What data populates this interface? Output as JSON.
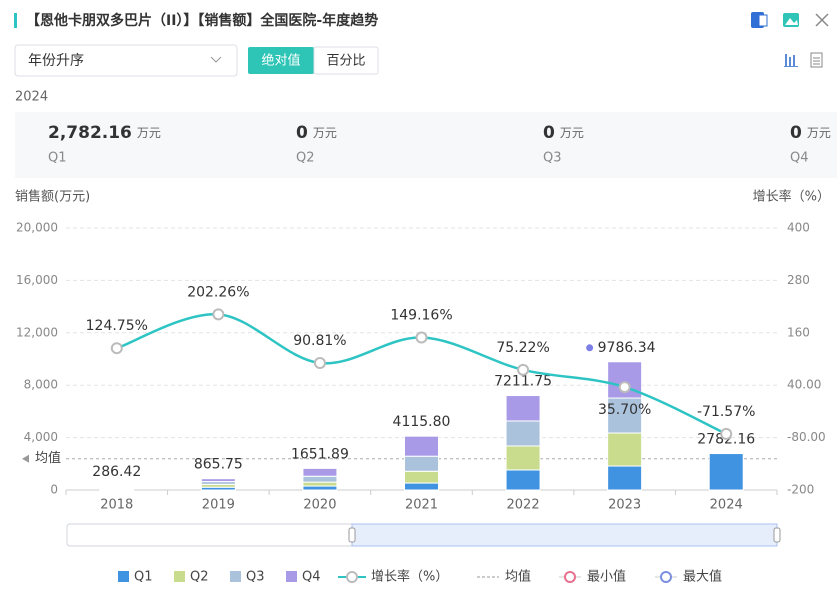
{
  "header": {
    "title": "【恩他卡朋双多巴片（II）】【销售额】全国医院-年度趋势"
  },
  "controls": {
    "sort": "年份升序",
    "modes": [
      "绝对值",
      "百分比"
    ]
  },
  "year": "2024",
  "kpis": [
    {
      "value": "2,782.16",
      "unit": "万元",
      "label": "Q1"
    },
    {
      "value": "0",
      "unit": "万元",
      "label": "Q2"
    },
    {
      "value": "0",
      "unit": "万元",
      "label": "Q3"
    },
    {
      "value": "0",
      "unit": "万元",
      "label": "Q4"
    }
  ],
  "chart_data": {
    "type": "bar",
    "stacked": true,
    "ylabel": "销售额(万元)",
    "y2label": "增长率（%）",
    "categories": [
      "2018",
      "2019",
      "2020",
      "2021",
      "2022",
      "2023",
      "2024"
    ],
    "series": [
      {
        "name": "Q1",
        "color": "#3f93e0",
        "values": [
          70,
          210,
          300,
          530,
          1530,
          1830,
          2782.16
        ]
      },
      {
        "name": "Q2",
        "color": "#c9dc8e",
        "values": [
          70,
          220,
          300,
          900,
          1830,
          2520,
          0
        ]
      },
      {
        "name": "Q3",
        "color": "#aac2dc",
        "values": [
          70,
          215,
          450,
          1150,
          1910,
          2670,
          0
        ]
      },
      {
        "name": "Q4",
        "color": "#a99ae8",
        "values": [
          76,
          220,
          600,
          1530,
          1940,
          2770,
          0
        ]
      },
      {
        "name": "增长率（%）",
        "type": "line",
        "axis": "y2",
        "color": "#2ec4c4",
        "values": [
          124.75,
          202.26,
          90.81,
          149.16,
          75.22,
          35.7,
          -71.57
        ],
        "value_labels": [
          "124.75%",
          "202.26%",
          "90.81%",
          "149.16%",
          "75.22%",
          "35.70%",
          "-71.57%"
        ]
      }
    ],
    "totals": {
      "values": [
        286.42,
        865.75,
        1651.89,
        4115.8,
        7211.75,
        9786.34,
        2782.16
      ],
      "value_labels": [
        "286.42",
        "865.75",
        "1651.89",
        "4115.80",
        "7211.75",
        "9786.34",
        "2782.16"
      ]
    },
    "average": {
      "value": 2390,
      "label": "均值"
    },
    "min_label": "最小值",
    "max_label": "最大值",
    "ylim": [
      0,
      20000
    ],
    "yticks": [
      0,
      {
        "value": 4000,
        "label": "4,000"
      },
      {
        "value": 8000,
        "label": "8,000"
      },
      {
        "value": 12000,
        "label": "12,000"
      },
      {
        "value": 16000,
        "label": "16,000"
      },
      {
        "value": 20000,
        "label": "20,000"
      }
    ],
    "y2lim": [
      -200,
      400
    ],
    "y2ticks": [
      -200,
      {
        "value": -80,
        "label": "-80.00"
      },
      {
        "value": 40,
        "label": "40.00"
      },
      160,
      280,
      400
    ],
    "grid": true
  }
}
